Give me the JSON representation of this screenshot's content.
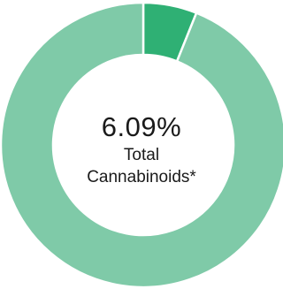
{
  "chart_data": {
    "type": "pie",
    "variant": "donut",
    "slices": [
      {
        "label": "Total Cannabinoids",
        "value": 6.09,
        "color": "#2fb074"
      },
      {
        "label": "",
        "value": 93.91,
        "color": "#7fcaa8"
      }
    ],
    "center_value": "6.09%",
    "center_label_line1": "Total",
    "center_label_line2": "Cannabinoids*",
    "start_angle_deg": 0,
    "direction": "clockwise"
  }
}
